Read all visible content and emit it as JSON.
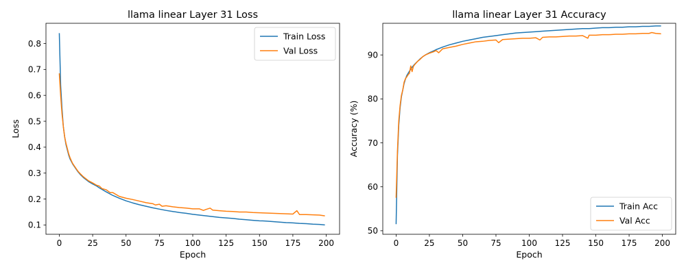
{
  "colors": {
    "train": "#1f77b4",
    "val": "#ff7f0e"
  },
  "chart_data": [
    {
      "type": "line",
      "title": "llama linear Layer 31 Loss",
      "xlabel": "Epoch",
      "ylabel": "Loss",
      "xlim": [
        -10,
        210
      ],
      "ylim": [
        0.064,
        0.878
      ],
      "xticks": [
        0,
        25,
        50,
        75,
        100,
        125,
        150,
        175,
        200
      ],
      "yticks": [
        0.1,
        0.2,
        0.3,
        0.4,
        0.5,
        0.6,
        0.7,
        0.8
      ],
      "ytick_labels": [
        "0.1",
        "0.2",
        "0.3",
        "0.4",
        "0.5",
        "0.6",
        "0.7",
        "0.8"
      ],
      "legend": "top-right",
      "grid": false,
      "series": [
        {
          "name": "Train Loss",
          "color": "#1f77b4",
          "x": [
            0,
            1,
            2,
            3,
            4,
            5,
            6,
            7,
            8,
            9,
            10,
            12,
            14,
            16,
            18,
            20,
            22,
            25,
            28,
            30,
            35,
            40,
            45,
            50,
            55,
            60,
            65,
            70,
            75,
            80,
            85,
            90,
            95,
            100,
            105,
            110,
            115,
            120,
            125,
            130,
            135,
            140,
            145,
            150,
            155,
            160,
            165,
            170,
            175,
            180,
            185,
            190,
            195,
            199
          ],
          "y": [
            0.84,
            0.64,
            0.55,
            0.48,
            0.44,
            0.41,
            0.39,
            0.37,
            0.355,
            0.345,
            0.335,
            0.32,
            0.305,
            0.293,
            0.283,
            0.275,
            0.267,
            0.258,
            0.25,
            0.243,
            0.228,
            0.214,
            0.203,
            0.193,
            0.185,
            0.178,
            0.172,
            0.166,
            0.161,
            0.156,
            0.152,
            0.148,
            0.145,
            0.141,
            0.138,
            0.135,
            0.132,
            0.129,
            0.127,
            0.125,
            0.122,
            0.12,
            0.118,
            0.116,
            0.115,
            0.113,
            0.111,
            0.109,
            0.108,
            0.106,
            0.105,
            0.103,
            0.102,
            0.1
          ]
        },
        {
          "name": "Val Loss",
          "color": "#ff7f0e",
          "x": [
            0,
            1,
            2,
            3,
            4,
            5,
            6,
            7,
            8,
            9,
            10,
            12,
            14,
            16,
            18,
            20,
            22,
            25,
            28,
            30,
            32,
            35,
            38,
            40,
            45,
            50,
            55,
            60,
            65,
            70,
            72,
            75,
            77,
            80,
            85,
            90,
            95,
            100,
            105,
            108,
            110,
            113,
            115,
            120,
            125,
            130,
            135,
            140,
            145,
            150,
            155,
            160,
            165,
            170,
            175,
            178,
            180,
            185,
            190,
            195,
            199
          ],
          "y": [
            0.685,
            0.6,
            0.53,
            0.48,
            0.44,
            0.415,
            0.395,
            0.375,
            0.36,
            0.348,
            0.337,
            0.322,
            0.307,
            0.296,
            0.286,
            0.278,
            0.27,
            0.262,
            0.253,
            0.25,
            0.24,
            0.236,
            0.225,
            0.225,
            0.21,
            0.203,
            0.198,
            0.192,
            0.186,
            0.182,
            0.177,
            0.18,
            0.172,
            0.174,
            0.17,
            0.167,
            0.165,
            0.162,
            0.162,
            0.156,
            0.16,
            0.165,
            0.157,
            0.155,
            0.153,
            0.152,
            0.15,
            0.15,
            0.148,
            0.147,
            0.146,
            0.145,
            0.144,
            0.143,
            0.142,
            0.155,
            0.14,
            0.14,
            0.139,
            0.138,
            0.135
          ]
        }
      ]
    },
    {
      "type": "line",
      "title": "llama linear Layer 31 Accuracy",
      "xlabel": "Epoch",
      "ylabel": "Accuracy (%)",
      "xlim": [
        -10,
        210
      ],
      "ylim": [
        49.2,
        97.2
      ],
      "xticks": [
        0,
        25,
        50,
        75,
        100,
        125,
        150,
        175,
        200
      ],
      "yticks": [
        50,
        60,
        70,
        80,
        90
      ],
      "ytick_labels": [
        "50",
        "60",
        "70",
        "80",
        "90"
      ],
      "legend": "bottom-right",
      "grid": false,
      "series": [
        {
          "name": "Train Acc",
          "color": "#1f77b4",
          "x": [
            0,
            1,
            2,
            3,
            4,
            5,
            6,
            7,
            8,
            9,
            10,
            12,
            14,
            16,
            18,
            20,
            22,
            25,
            28,
            30,
            35,
            40,
            45,
            50,
            55,
            60,
            65,
            70,
            75,
            80,
            85,
            90,
            95,
            100,
            105,
            110,
            115,
            120,
            125,
            130,
            135,
            140,
            145,
            150,
            155,
            160,
            165,
            170,
            175,
            180,
            185,
            190,
            195,
            199
          ],
          "y": [
            51.5,
            67.0,
            74.0,
            78.0,
            80.5,
            82.0,
            83.5,
            84.5,
            85.3,
            85.8,
            86.3,
            87.2,
            87.9,
            88.5,
            89.1,
            89.6,
            90.0,
            90.5,
            90.9,
            91.2,
            91.8,
            92.3,
            92.7,
            93.1,
            93.4,
            93.7,
            94.0,
            94.2,
            94.4,
            94.6,
            94.8,
            95.0,
            95.1,
            95.2,
            95.3,
            95.4,
            95.5,
            95.6,
            95.7,
            95.8,
            95.9,
            96.0,
            96.0,
            96.1,
            96.2,
            96.2,
            96.3,
            96.3,
            96.4,
            96.4,
            96.5,
            96.5,
            96.6,
            96.6
          ]
        },
        {
          "name": "Val Acc",
          "color": "#ff7f0e",
          "x": [
            0,
            1,
            2,
            3,
            4,
            5,
            6,
            7,
            8,
            9,
            10,
            11,
            12,
            13,
            14,
            16,
            18,
            20,
            22,
            25,
            28,
            30,
            32,
            35,
            40,
            45,
            50,
            55,
            60,
            65,
            70,
            75,
            77,
            80,
            85,
            90,
            95,
            100,
            105,
            108,
            110,
            115,
            120,
            125,
            130,
            135,
            140,
            144,
            145,
            150,
            155,
            160,
            165,
            170,
            175,
            180,
            185,
            190,
            192,
            195,
            199
          ],
          "y": [
            57.5,
            68.0,
            75.0,
            78.5,
            80.8,
            82.0,
            83.8,
            84.6,
            85.0,
            85.5,
            85.8,
            87.5,
            86.2,
            87.4,
            87.8,
            88.5,
            89.0,
            89.6,
            90.0,
            90.4,
            90.7,
            91.0,
            90.5,
            91.4,
            91.7,
            92.0,
            92.4,
            92.7,
            93.0,
            93.1,
            93.3,
            93.4,
            92.8,
            93.5,
            93.6,
            93.7,
            93.8,
            93.8,
            93.9,
            93.4,
            94.0,
            94.1,
            94.1,
            94.2,
            94.3,
            94.3,
            94.4,
            93.8,
            94.5,
            94.5,
            94.6,
            94.6,
            94.7,
            94.7,
            94.8,
            94.8,
            94.9,
            94.9,
            95.1,
            94.9,
            94.8
          ]
        }
      ]
    }
  ]
}
